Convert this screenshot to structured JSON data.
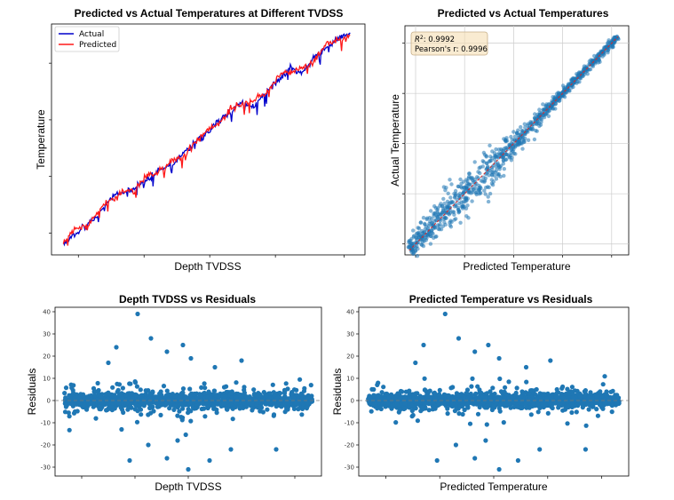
{
  "colors": {
    "actual": "#0000cc",
    "predicted": "#ff1a1a",
    "scatter": "#1f77b4",
    "fitline": "#d62728",
    "grid": "#cccccc",
    "statbox_fill": "#f5deb3",
    "statbox_edge": "#c8b08a"
  },
  "chart_data": [
    {
      "id": "line",
      "type": "line",
      "title": "Predicted vs Actual Temperatures at Different TVDSS",
      "xlabel": "Depth TVDSS",
      "ylabel": "Temperature",
      "legend_position": "top-left",
      "grid": false,
      "x_ticks_labeled": false,
      "y_ticks_labeled": false,
      "xlim": [
        0,
        1.05
      ],
      "ylim": [
        0,
        1.06
      ],
      "series": [
        {
          "name": "Actual",
          "x": [
            0.04,
            0.08,
            0.12,
            0.16,
            0.2,
            0.24,
            0.28,
            0.32,
            0.36,
            0.4,
            0.44,
            0.48,
            0.52,
            0.56,
            0.6,
            0.64,
            0.68,
            0.72,
            0.76,
            0.8,
            0.84,
            0.88,
            0.92,
            0.96,
            1.0
          ],
          "y": [
            0.05,
            0.1,
            0.14,
            0.19,
            0.26,
            0.28,
            0.31,
            0.34,
            0.39,
            0.41,
            0.46,
            0.52,
            0.55,
            0.62,
            0.66,
            0.7,
            0.68,
            0.75,
            0.8,
            0.86,
            0.83,
            0.91,
            0.95,
            0.99,
            1.02
          ]
        },
        {
          "name": "Predicted",
          "x": [
            0.04,
            0.08,
            0.12,
            0.16,
            0.2,
            0.24,
            0.28,
            0.32,
            0.36,
            0.4,
            0.44,
            0.48,
            0.52,
            0.56,
            0.6,
            0.64,
            0.68,
            0.72,
            0.76,
            0.8,
            0.84,
            0.88,
            0.92,
            0.96,
            1.0
          ],
          "y": [
            0.06,
            0.12,
            0.13,
            0.21,
            0.25,
            0.29,
            0.3,
            0.36,
            0.38,
            0.43,
            0.45,
            0.51,
            0.57,
            0.6,
            0.67,
            0.69,
            0.71,
            0.74,
            0.82,
            0.84,
            0.86,
            0.89,
            0.97,
            0.98,
            1.01
          ]
        }
      ]
    },
    {
      "id": "pva",
      "type": "scatter",
      "title": "Predicted vs Actual Temperatures",
      "xlabel": "Predicted Temperature",
      "ylabel": "Actual Temperature",
      "grid": true,
      "x_ticks_labeled": false,
      "y_ticks_labeled": false,
      "stats": {
        "r2_label": "R",
        "r2_sup": "2",
        "r2_value": ": 0.9992",
        "pearson": "Pearson's r: 0.9996"
      },
      "stats_position": "top-left",
      "fit_line": "identity",
      "xlim": [
        0,
        1.05
      ],
      "ylim": [
        0,
        1.05
      ],
      "points_description_free": [
        0.02,
        0.05,
        0.08,
        0.12,
        0.15,
        0.19,
        0.22,
        0.26,
        0.3,
        0.33,
        0.37,
        0.41,
        0.44,
        0.48,
        0.52,
        0.55,
        0.59,
        0.63,
        0.67,
        0.7,
        0.74,
        0.78,
        0.82,
        0.86,
        0.89,
        0.93,
        0.97,
        1.0
      ],
      "spread": 0.025
    },
    {
      "id": "res_depth",
      "type": "scatter",
      "title": "Depth TVDSS vs Residuals",
      "xlabel": "Depth TVDSS",
      "ylabel": "Residuals",
      "grid": false,
      "x_ticks_labeled": false,
      "yticks": [
        40,
        30,
        20,
        10,
        0,
        -10,
        -20,
        -30
      ],
      "ylim": [
        -34,
        42
      ],
      "xlim": [
        0,
        1
      ],
      "zero_line": true,
      "outliers": [
        {
          "x": 0.31,
          "y": 39
        },
        {
          "x": 0.23,
          "y": 24
        },
        {
          "x": 0.36,
          "y": 28
        },
        {
          "x": 0.48,
          "y": 25
        },
        {
          "x": 0.51,
          "y": 19
        },
        {
          "x": 0.42,
          "y": 22
        },
        {
          "x": 0.2,
          "y": 17
        },
        {
          "x": 0.6,
          "y": 15
        },
        {
          "x": 0.7,
          "y": 18
        },
        {
          "x": 0.28,
          "y": -27
        },
        {
          "x": 0.5,
          "y": -31
        },
        {
          "x": 0.42,
          "y": -26
        },
        {
          "x": 0.58,
          "y": -27
        },
        {
          "x": 0.66,
          "y": -22
        },
        {
          "x": 0.83,
          "y": -22
        },
        {
          "x": 0.35,
          "y": -20
        },
        {
          "x": 0.46,
          "y": -18
        }
      ]
    },
    {
      "id": "res_pred",
      "type": "scatter",
      "title": "Predicted Temperature vs Residuals",
      "xlabel": "Predicted Temperature",
      "ylabel": "Residuals",
      "grid": false,
      "x_ticks_labeled": false,
      "yticks": [
        40,
        30,
        20,
        10,
        0,
        -10,
        -20,
        -30
      ],
      "ylim": [
        -34,
        42
      ],
      "xlim": [
        0,
        1
      ],
      "zero_line": true,
      "outliers": [
        {
          "x": 0.32,
          "y": 39
        },
        {
          "x": 0.24,
          "y": 25
        },
        {
          "x": 0.37,
          "y": 28
        },
        {
          "x": 0.48,
          "y": 25
        },
        {
          "x": 0.52,
          "y": 19
        },
        {
          "x": 0.43,
          "y": 22
        },
        {
          "x": 0.21,
          "y": 17
        },
        {
          "x": 0.62,
          "y": 15
        },
        {
          "x": 0.71,
          "y": 18
        },
        {
          "x": 0.29,
          "y": -27
        },
        {
          "x": 0.52,
          "y": -31
        },
        {
          "x": 0.43,
          "y": -26
        },
        {
          "x": 0.59,
          "y": -27
        },
        {
          "x": 0.67,
          "y": -22
        },
        {
          "x": 0.84,
          "y": -22
        },
        {
          "x": 0.36,
          "y": -20
        },
        {
          "x": 0.47,
          "y": -18
        }
      ]
    }
  ]
}
